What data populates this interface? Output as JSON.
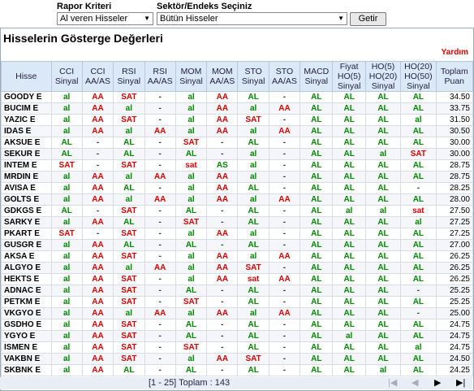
{
  "form": {
    "report_label": "Rapor Kriteri",
    "report_value": "Al veren Hisseler",
    "sector_label": "Sektör/Endeks Seçiniz",
    "sector_value": "Bütün Hisseler",
    "button": "Getir"
  },
  "panel": {
    "title": "Hisselerin Gösterge Değerleri",
    "help": "Yardım"
  },
  "table": {
    "headers": [
      [
        "Hisse"
      ],
      [
        "CCI",
        "Sinyal"
      ],
      [
        "CCI",
        "AA/AS"
      ],
      [
        "RSI",
        "Sinyal"
      ],
      [
        "RSI",
        "AA/AS"
      ],
      [
        "MOM",
        "Sinyal"
      ],
      [
        "MOM",
        "AA/AS"
      ],
      [
        "STO",
        "Sinyal"
      ],
      [
        "STO",
        "AA/AS"
      ],
      [
        "MACD",
        "Sinyal"
      ],
      [
        "Fiyat",
        "HO(5)",
        "Sinyal"
      ],
      [
        "HO(5)",
        "HO(20)",
        "Sinyal"
      ],
      [
        "HO(20)",
        "HO(50)",
        "Sinyal"
      ],
      [
        "Toplam",
        "Puan"
      ]
    ],
    "rows": [
      [
        "GOODY E",
        "al",
        "AA",
        "SAT",
        "-",
        "al",
        "AA",
        "AL",
        "-",
        "AL",
        "AL",
        "AL",
        "AL",
        "34.50"
      ],
      [
        "BUCIM E",
        "al",
        "AA",
        "al",
        "-",
        "al",
        "AA",
        "al",
        "AA",
        "AL",
        "AL",
        "AL",
        "AL",
        "33.75"
      ],
      [
        "YAZIC E",
        "al",
        "AA",
        "SAT",
        "-",
        "al",
        "AA",
        "SAT",
        "-",
        "AL",
        "AL",
        "AL",
        "al",
        "31.50"
      ],
      [
        "IDAS E",
        "al",
        "AA",
        "al",
        "AA",
        "al",
        "AA",
        "al",
        "AA",
        "AL",
        "AL",
        "AL",
        "AL",
        "30.50"
      ],
      [
        "AKSUE E",
        "AL",
        "-",
        "AL",
        "-",
        "SAT",
        "-",
        "AL",
        "-",
        "AL",
        "AL",
        "AL",
        "AL",
        "30.00"
      ],
      [
        "SEKUR E",
        "AL",
        "-",
        "AL",
        "-",
        "AL",
        "-",
        "al",
        "-",
        "AL",
        "AL",
        "al",
        "SAT",
        "30.00"
      ],
      [
        "INTEM E",
        "SAT",
        "-",
        "SAT",
        "-",
        "sat",
        "AS",
        "al",
        "-",
        "AL",
        "AL",
        "AL",
        "AL",
        "28.75"
      ],
      [
        "MRDIN E",
        "al",
        "AA",
        "al",
        "AA",
        "al",
        "AA",
        "al",
        "-",
        "AL",
        "AL",
        "AL",
        "AL",
        "28.75"
      ],
      [
        "AVISA E",
        "al",
        "AA",
        "AL",
        "-",
        "al",
        "AA",
        "AL",
        "-",
        "AL",
        "AL",
        "AL",
        "-",
        "28.25"
      ],
      [
        "GOLTS E",
        "al",
        "AA",
        "al",
        "AA",
        "al",
        "AA",
        "al",
        "AA",
        "AL",
        "AL",
        "AL",
        "AL",
        "28.00"
      ],
      [
        "GDKGS E",
        "AL",
        "-",
        "SAT",
        "-",
        "AL",
        "-",
        "AL",
        "-",
        "AL",
        "al",
        "al",
        "sat",
        "27.50"
      ],
      [
        "SARKY E",
        "al",
        "AA",
        "AL",
        "-",
        "SAT",
        "-",
        "AL",
        "-",
        "AL",
        "AL",
        "AL",
        "al",
        "27.25"
      ],
      [
        "PKART E",
        "SAT",
        "-",
        "SAT",
        "-",
        "al",
        "AA",
        "al",
        "-",
        "AL",
        "AL",
        "AL",
        "AL",
        "27.25"
      ],
      [
        "GUSGR E",
        "al",
        "AA",
        "AL",
        "-",
        "AL",
        "-",
        "AL",
        "-",
        "AL",
        "AL",
        "AL",
        "AL",
        "27.00"
      ],
      [
        "AKSA E",
        "al",
        "AA",
        "SAT",
        "-",
        "al",
        "AA",
        "al",
        "AA",
        "AL",
        "AL",
        "AL",
        "AL",
        "26.25"
      ],
      [
        "ALGYO E",
        "al",
        "AA",
        "al",
        "AA",
        "al",
        "AA",
        "SAT",
        "-",
        "AL",
        "AL",
        "AL",
        "AL",
        "26.25"
      ],
      [
        "HEKTS E",
        "al",
        "AA",
        "SAT",
        "-",
        "al",
        "AA",
        "sat",
        "AA",
        "AL",
        "AL",
        "AL",
        "AL",
        "26.25"
      ],
      [
        "ADNAC E",
        "al",
        "AA",
        "SAT",
        "-",
        "AL",
        "-",
        "AL",
        "-",
        "AL",
        "AL",
        "AL",
        "-",
        "25.25"
      ],
      [
        "PETKM E",
        "al",
        "AA",
        "SAT",
        "-",
        "SAT",
        "-",
        "AL",
        "-",
        "AL",
        "AL",
        "AL",
        "AL",
        "25.25"
      ],
      [
        "VKGYO E",
        "al",
        "AA",
        "al",
        "AA",
        "al",
        "AA",
        "al",
        "AA",
        "AL",
        "AL",
        "AL",
        "-",
        "25.00"
      ],
      [
        "GSDHO E",
        "al",
        "AA",
        "SAT",
        "-",
        "AL",
        "-",
        "AL",
        "-",
        "AL",
        "AL",
        "AL",
        "AL",
        "24.75"
      ],
      [
        "YGYO E",
        "al",
        "AA",
        "SAT",
        "-",
        "AL",
        "-",
        "AL",
        "-",
        "AL",
        "al",
        "AL",
        "AL",
        "24.75"
      ],
      [
        "ISMEN E",
        "al",
        "AA",
        "SAT",
        "-",
        "SAT",
        "-",
        "AL",
        "-",
        "AL",
        "AL",
        "AL",
        "al",
        "24.75"
      ],
      [
        "VAKBN E",
        "al",
        "AA",
        "SAT",
        "-",
        "al",
        "AA",
        "SAT",
        "-",
        "AL",
        "AL",
        "AL",
        "AL",
        "24.50"
      ],
      [
        "SKBNK E",
        "al",
        "AA",
        "AL",
        "-",
        "AL",
        "-",
        "AL",
        "-",
        "AL",
        "AL",
        "al",
        "AL",
        "24.25"
      ]
    ]
  },
  "footer": {
    "pager": "[1 - 25] Toplam : 143"
  }
}
